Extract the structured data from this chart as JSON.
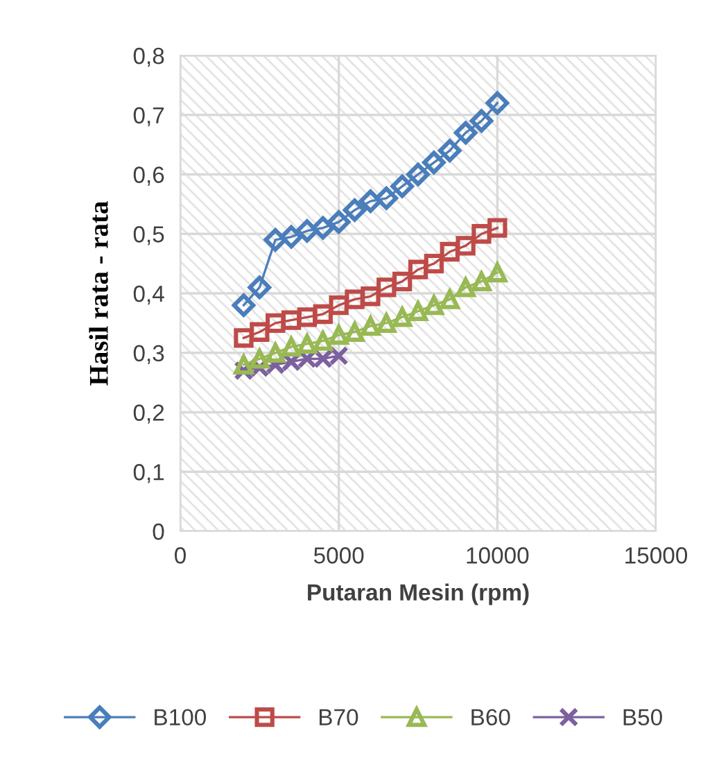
{
  "chart_data": {
    "type": "line",
    "xlabel": "Putaran Mesin (rpm)",
    "ylabel": "Hasil rata - rata",
    "xlim": [
      0,
      15000
    ],
    "xticks": [
      0,
      5000,
      10000,
      15000
    ],
    "ylim": [
      0,
      0.8
    ],
    "yticks": [
      {
        "value": 0,
        "label": "0"
      },
      {
        "value": 0.1,
        "label": "0,1"
      },
      {
        "value": 0.2,
        "label": "0,2"
      },
      {
        "value": 0.3,
        "label": "0,3"
      },
      {
        "value": 0.4,
        "label": "0,4"
      },
      {
        "value": 0.5,
        "label": "0,5"
      },
      {
        "value": 0.6,
        "label": "0,6"
      },
      {
        "value": 0.7,
        "label": "0,7"
      },
      {
        "value": 0.8,
        "label": "0,8"
      }
    ],
    "grid": true,
    "legend": "bottom",
    "series": [
      {
        "name": "B100",
        "color": "#4a7ebb",
        "marker": "diamond",
        "x": [
          2000,
          2500,
          3000,
          3500,
          4000,
          4500,
          5000,
          5500,
          6000,
          6500,
          7000,
          7500,
          8000,
          8500,
          9000,
          9500,
          10000
        ],
        "values": [
          0.38,
          0.41,
          0.49,
          0.495,
          0.505,
          0.51,
          0.52,
          0.54,
          0.555,
          0.56,
          0.58,
          0.6,
          0.62,
          0.64,
          0.67,
          0.69,
          0.72
        ]
      },
      {
        "name": "B70",
        "color": "#be4b48",
        "marker": "square",
        "x": [
          2000,
          2500,
          3000,
          3500,
          4000,
          4500,
          5000,
          5500,
          6000,
          6500,
          7000,
          7500,
          8000,
          8500,
          9000,
          9500,
          10000
        ],
        "values": [
          0.325,
          0.335,
          0.35,
          0.355,
          0.36,
          0.365,
          0.38,
          0.39,
          0.395,
          0.41,
          0.42,
          0.44,
          0.45,
          0.47,
          0.48,
          0.5,
          0.51
        ]
      },
      {
        "name": "B60",
        "color": "#98b954",
        "marker": "triangle",
        "x": [
          2000,
          2500,
          3000,
          3500,
          4000,
          4500,
          5000,
          5500,
          6000,
          6500,
          7000,
          7500,
          8000,
          8500,
          9000,
          9500,
          10000
        ],
        "values": [
          0.28,
          0.29,
          0.3,
          0.31,
          0.315,
          0.32,
          0.33,
          0.335,
          0.345,
          0.35,
          0.36,
          0.37,
          0.38,
          0.39,
          0.41,
          0.42,
          0.435
        ]
      },
      {
        "name": "B50",
        "color": "#7d60a0",
        "marker": "cross",
        "x": [
          2000,
          2500,
          3000,
          3500,
          4000,
          4500,
          5000
        ],
        "values": [
          0.27,
          0.275,
          0.28,
          0.285,
          0.29,
          0.29,
          0.295
        ]
      }
    ]
  }
}
